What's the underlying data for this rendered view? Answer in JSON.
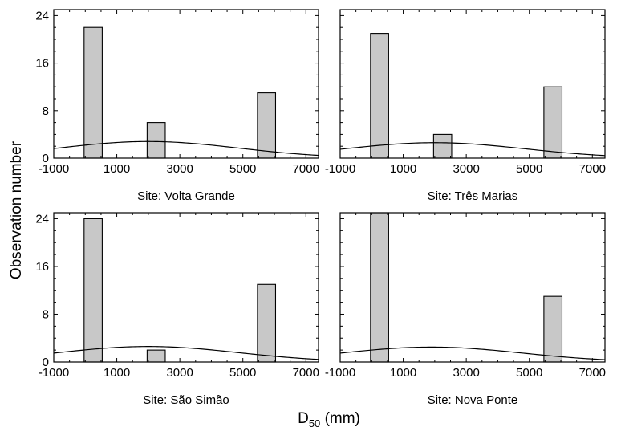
{
  "chart_data": {
    "type": "bar",
    "ylabel": "Observation number",
    "xlabel": {
      "main": "D",
      "sub": "50",
      "unit": " (mm)"
    },
    "xlim": [
      -1000,
      7400
    ],
    "ylim": [
      0,
      25
    ],
    "x_ticks": [
      -1000,
      1000,
      3000,
      5000,
      7000
    ],
    "x_tick_labels": [
      "-1000",
      "1000",
      "3000",
      "5000",
      "7000"
    ],
    "x_minor_tick_step": 500,
    "y_ticks": [
      0,
      8,
      16,
      24
    ],
    "y_tick_labels": [
      "0",
      "8",
      "16",
      "24"
    ],
    "y_minor_tick_step": 2,
    "bar_width": 575,
    "panels": [
      {
        "site_label": "Site: Volta Grande",
        "bars": [
          {
            "center": 250,
            "count": 22
          },
          {
            "center": 2250,
            "count": 6
          },
          {
            "center": 5750,
            "count": 11
          }
        ],
        "fit_curve": {
          "kind": "normal",
          "peak_x": 2000,
          "peak_y": 2.8,
          "sigma": 2850
        }
      },
      {
        "site_label": "Site: Três Marias",
        "bars": [
          {
            "center": 250,
            "count": 21
          },
          {
            "center": 2250,
            "count": 4
          },
          {
            "center": 5750,
            "count": 12
          }
        ],
        "fit_curve": {
          "kind": "normal",
          "peak_x": 2000,
          "peak_y": 2.6,
          "sigma": 2850
        }
      },
      {
        "site_label": "Site: São Simão",
        "bars": [
          {
            "center": 250,
            "count": 24
          },
          {
            "center": 2250,
            "count": 2
          },
          {
            "center": 5750,
            "count": 13
          }
        ],
        "fit_curve": {
          "kind": "normal",
          "peak_x": 2000,
          "peak_y": 2.6,
          "sigma": 2850
        }
      },
      {
        "site_label": "Site: Nova Ponte",
        "bars": [
          {
            "center": 250,
            "count": 25
          },
          {
            "center": 5750,
            "count": 11
          }
        ],
        "fit_curve": {
          "kind": "normal",
          "peak_x": 1900,
          "peak_y": 2.5,
          "sigma": 2850
        }
      }
    ]
  }
}
